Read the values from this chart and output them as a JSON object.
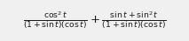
{
  "latex": "$\\frac{\\cos^2 t}{(1+\\sin t)(\\cos t)}+\\frac{\\sin t+\\sin^2 t}{(1+\\sin t)(\\cos t)}$",
  "figwidth": 2.13,
  "figheight": 0.47,
  "dpi": 100,
  "fontsize": 9.5,
  "text_color": "#1a1a1a",
  "bg_color": "#f0f0f0"
}
